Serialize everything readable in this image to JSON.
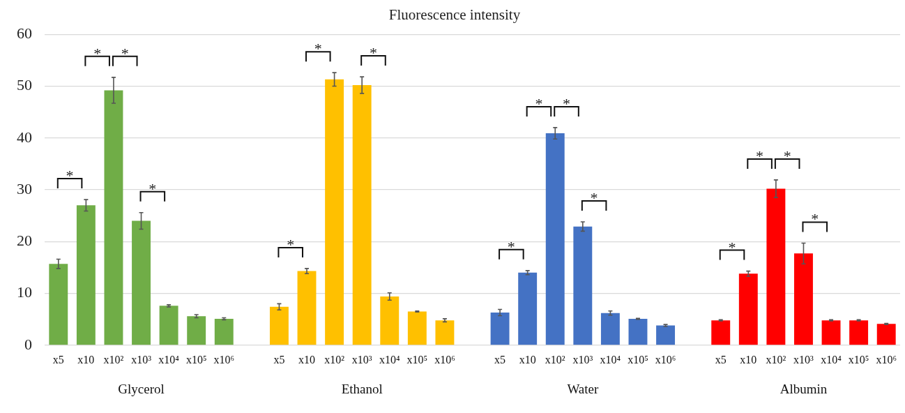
{
  "chart_data": {
    "type": "bar",
    "title": "Fluorescence intensity",
    "categories": [
      "x5",
      "x10",
      "x10²",
      "x10³",
      "x10⁴",
      "x10⁵",
      "x10⁶",
      null,
      "x5",
      "x10",
      "x10²",
      "x10³",
      "x10⁴",
      "x10⁵",
      "x10⁶",
      null,
      "x5",
      "x10",
      "x10²",
      "x10³",
      "x10⁴",
      "x10⁵",
      "x10⁶",
      null,
      "x5",
      "x10",
      "x10²",
      "x10³",
      "x10⁴",
      "x10⁵",
      "x10⁶"
    ],
    "series": [
      {
        "name": "Glycerol",
        "color": "#70ad47",
        "values": [
          15.7,
          27,
          49.2,
          24,
          7.6,
          5.6,
          5.1,
          null,
          null,
          null,
          null,
          null,
          null,
          null,
          null,
          null,
          null,
          null,
          null,
          null,
          null,
          null,
          null,
          null,
          null,
          null,
          null,
          null,
          null,
          null,
          null
        ],
        "errors": [
          0.9,
          1.1,
          2.5,
          1.6,
          0.2,
          0.3,
          0.2,
          null,
          null,
          null,
          null,
          null,
          null,
          null,
          null,
          null,
          null,
          null,
          null,
          null,
          null,
          null,
          null,
          null,
          null,
          null,
          null,
          null,
          null,
          null,
          null
        ]
      },
      {
        "name": "Ethanol",
        "color": "#ffc000",
        "values": [
          null,
          null,
          null,
          null,
          null,
          null,
          null,
          null,
          7.4,
          14.3,
          51.3,
          50.2,
          9.4,
          6.5,
          4.8,
          null,
          null,
          null,
          null,
          null,
          null,
          null,
          null,
          null,
          null,
          null,
          null,
          null,
          null,
          null,
          null
        ],
        "errors": [
          null,
          null,
          null,
          null,
          null,
          null,
          null,
          null,
          0.6,
          0.5,
          1.3,
          1.6,
          0.7,
          0.1,
          0.3,
          null,
          null,
          null,
          null,
          null,
          null,
          null,
          null,
          null,
          null,
          null,
          null,
          null,
          null,
          null,
          null
        ]
      },
      {
        "name": "Water",
        "color": "#4472c4",
        "values": [
          null,
          null,
          null,
          null,
          null,
          null,
          null,
          null,
          null,
          null,
          null,
          null,
          null,
          null,
          null,
          null,
          6.3,
          14,
          40.9,
          22.9,
          6.2,
          5.1,
          3.8,
          null,
          null,
          null,
          null,
          null,
          null,
          null,
          null
        ],
        "errors": [
          null,
          null,
          null,
          null,
          null,
          null,
          null,
          null,
          null,
          null,
          null,
          null,
          null,
          null,
          null,
          null,
          0.6,
          0.4,
          1.1,
          0.9,
          0.4,
          0.1,
          0.2,
          null,
          null,
          null,
          null,
          null,
          null,
          null,
          null
        ]
      },
      {
        "name": "Albumin",
        "color": "#ff0000",
        "values": [
          null,
          null,
          null,
          null,
          null,
          null,
          null,
          null,
          null,
          null,
          null,
          null,
          null,
          null,
          null,
          null,
          null,
          null,
          null,
          null,
          null,
          null,
          null,
          null,
          4.8,
          13.8,
          30.2,
          17.7,
          4.8,
          4.8,
          4.1
        ],
        "errors": [
          null,
          null,
          null,
          null,
          null,
          null,
          null,
          null,
          null,
          null,
          null,
          null,
          null,
          null,
          null,
          null,
          null,
          null,
          null,
          null,
          null,
          null,
          null,
          null,
          0.1,
          0.5,
          1.7,
          2,
          0.1,
          0.1,
          0.1
        ]
      }
    ],
    "ylim": [
      0,
      60
    ],
    "yticks": [
      0,
      10,
      20,
      30,
      40,
      50,
      60
    ],
    "grid": "y",
    "legend": false,
    "annotations": [
      "*",
      "*",
      "*",
      "*",
      "*",
      "*",
      "*",
      "*",
      "*",
      "*",
      "*",
      "*",
      "*",
      "*",
      "*"
    ]
  }
}
